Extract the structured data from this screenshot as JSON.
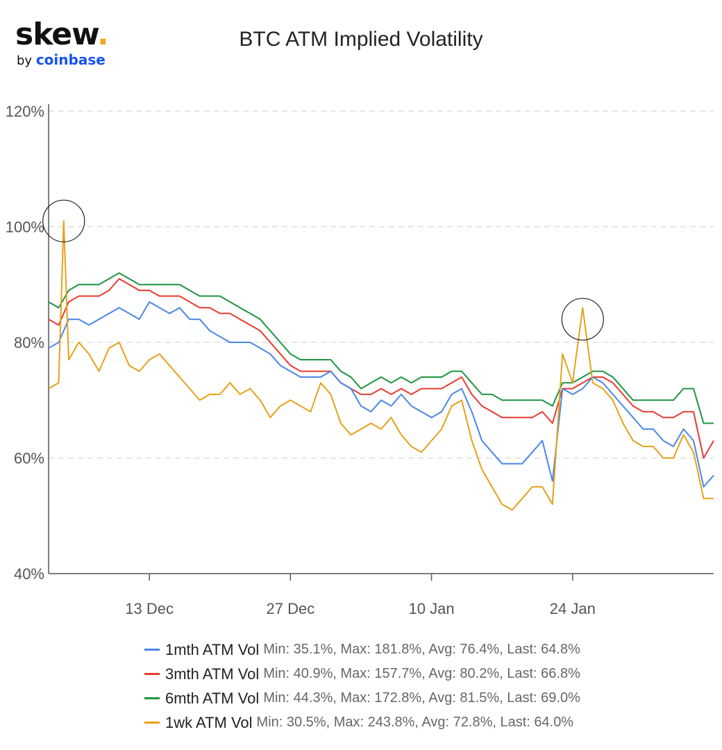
{
  "logo": {
    "main": "skew",
    "dot": ".",
    "by": "by",
    "brand": "coinbase"
  },
  "chart_data": {
    "type": "line",
    "title": "BTC ATM Implied Volatility",
    "y_tick_labels": [
      "40%",
      "60%",
      "80%",
      "100%",
      "120%"
    ],
    "x_tick_labels": [
      "13 Dec",
      "27 Dec",
      "10 Jan",
      "24 Jan"
    ],
    "ylim": [
      40,
      120
    ],
    "xlim": [
      "2021-12-03",
      "2022-02-07"
    ],
    "grid": "horizontal dashed",
    "legend_position": "bottom",
    "series": [
      {
        "name": "1mth ATM Vol",
        "stats": "Min: 35.1%, Max: 181.8%, Avg: 76.4%, Last: 64.8%",
        "color": "#4a86e8",
        "points": [
          [
            "2021-12-03",
            79
          ],
          [
            "2021-12-04",
            80
          ],
          [
            "2021-12-05",
            84
          ],
          [
            "2021-12-06",
            84
          ],
          [
            "2021-12-07",
            83
          ],
          [
            "2021-12-08",
            84
          ],
          [
            "2021-12-09",
            85
          ],
          [
            "2021-12-10",
            86
          ],
          [
            "2021-12-11",
            85
          ],
          [
            "2021-12-12",
            84
          ],
          [
            "2021-12-13",
            87
          ],
          [
            "2021-12-14",
            86
          ],
          [
            "2021-12-15",
            85
          ],
          [
            "2021-12-16",
            86
          ],
          [
            "2021-12-17",
            84
          ],
          [
            "2021-12-18",
            84
          ],
          [
            "2021-12-19",
            82
          ],
          [
            "2021-12-20",
            81
          ],
          [
            "2021-12-21",
            80
          ],
          [
            "2021-12-22",
            80
          ],
          [
            "2021-12-23",
            80
          ],
          [
            "2021-12-24",
            79
          ],
          [
            "2021-12-25",
            78
          ],
          [
            "2021-12-26",
            76
          ],
          [
            "2021-12-27",
            75
          ],
          [
            "2021-12-28",
            74
          ],
          [
            "2021-12-29",
            74
          ],
          [
            "2021-12-30",
            74
          ],
          [
            "2021-12-31",
            75
          ],
          [
            "2022-01-01",
            73
          ],
          [
            "2022-01-02",
            72
          ],
          [
            "2022-01-03",
            69
          ],
          [
            "2022-01-04",
            68
          ],
          [
            "2022-01-05",
            70
          ],
          [
            "2022-01-06",
            69
          ],
          [
            "2022-01-07",
            71
          ],
          [
            "2022-01-08",
            69
          ],
          [
            "2022-01-09",
            68
          ],
          [
            "2022-01-10",
            67
          ],
          [
            "2022-01-11",
            68
          ],
          [
            "2022-01-12",
            71
          ],
          [
            "2022-01-13",
            72
          ],
          [
            "2022-01-14",
            68
          ],
          [
            "2022-01-15",
            63
          ],
          [
            "2022-01-16",
            61
          ],
          [
            "2022-01-17",
            59
          ],
          [
            "2022-01-18",
            59
          ],
          [
            "2022-01-19",
            59
          ],
          [
            "2022-01-20",
            61
          ],
          [
            "2022-01-21",
            63
          ],
          [
            "2022-01-22",
            56
          ],
          [
            "2022-01-23",
            72
          ],
          [
            "2022-01-24",
            71
          ],
          [
            "2022-01-25",
            72
          ],
          [
            "2022-01-26",
            74
          ],
          [
            "2022-01-27",
            73
          ],
          [
            "2022-01-28",
            71
          ],
          [
            "2022-01-29",
            69
          ],
          [
            "2022-01-30",
            67
          ],
          [
            "2022-01-31",
            65
          ],
          [
            "2022-02-01",
            65
          ],
          [
            "2022-02-02",
            63
          ],
          [
            "2022-02-03",
            62
          ],
          [
            "2022-02-04",
            65
          ],
          [
            "2022-02-05",
            63
          ],
          [
            "2022-02-06",
            55
          ],
          [
            "2022-02-07",
            57
          ]
        ]
      },
      {
        "name": "3mth ATM Vol",
        "stats": "Min: 40.9%, Max: 157.7%, Avg: 80.2%, Last: 66.8%",
        "color": "#e83a2f",
        "points": [
          [
            "2021-12-03",
            84
          ],
          [
            "2021-12-04",
            83
          ],
          [
            "2021-12-05",
            87
          ],
          [
            "2021-12-06",
            88
          ],
          [
            "2021-12-07",
            88
          ],
          [
            "2021-12-08",
            88
          ],
          [
            "2021-12-09",
            89
          ],
          [
            "2021-12-10",
            91
          ],
          [
            "2021-12-11",
            90
          ],
          [
            "2021-12-12",
            89
          ],
          [
            "2021-12-13",
            89
          ],
          [
            "2021-12-14",
            88
          ],
          [
            "2021-12-15",
            88
          ],
          [
            "2021-12-16",
            88
          ],
          [
            "2021-12-17",
            87
          ],
          [
            "2021-12-18",
            86
          ],
          [
            "2021-12-19",
            86
          ],
          [
            "2021-12-20",
            85
          ],
          [
            "2021-12-21",
            85
          ],
          [
            "2021-12-22",
            84
          ],
          [
            "2021-12-23",
            83
          ],
          [
            "2021-12-24",
            82
          ],
          [
            "2021-12-25",
            80
          ],
          [
            "2021-12-26",
            78
          ],
          [
            "2021-12-27",
            76
          ],
          [
            "2021-12-28",
            75
          ],
          [
            "2021-12-29",
            75
          ],
          [
            "2021-12-30",
            75
          ],
          [
            "2021-12-31",
            75
          ],
          [
            "2022-01-01",
            73
          ],
          [
            "2022-01-02",
            72
          ],
          [
            "2022-01-03",
            71
          ],
          [
            "2022-01-04",
            71
          ],
          [
            "2022-01-05",
            72
          ],
          [
            "2022-01-06",
            71
          ],
          [
            "2022-01-07",
            72
          ],
          [
            "2022-01-08",
            71
          ],
          [
            "2022-01-09",
            72
          ],
          [
            "2022-01-10",
            72
          ],
          [
            "2022-01-11",
            72
          ],
          [
            "2022-01-12",
            73
          ],
          [
            "2022-01-13",
            74
          ],
          [
            "2022-01-14",
            71
          ],
          [
            "2022-01-15",
            69
          ],
          [
            "2022-01-16",
            68
          ],
          [
            "2022-01-17",
            67
          ],
          [
            "2022-01-18",
            67
          ],
          [
            "2022-01-19",
            67
          ],
          [
            "2022-01-20",
            67
          ],
          [
            "2022-01-21",
            68
          ],
          [
            "2022-01-22",
            66
          ],
          [
            "2022-01-23",
            72
          ],
          [
            "2022-01-24",
            72
          ],
          [
            "2022-01-25",
            73
          ],
          [
            "2022-01-26",
            74
          ],
          [
            "2022-01-27",
            74
          ],
          [
            "2022-01-28",
            73
          ],
          [
            "2022-01-29",
            71
          ],
          [
            "2022-01-30",
            69
          ],
          [
            "2022-01-31",
            68
          ],
          [
            "2022-02-01",
            68
          ],
          [
            "2022-02-02",
            67
          ],
          [
            "2022-02-03",
            67
          ],
          [
            "2022-02-04",
            68
          ],
          [
            "2022-02-05",
            68
          ],
          [
            "2022-02-06",
            60
          ],
          [
            "2022-02-07",
            63
          ]
        ]
      },
      {
        "name": "6mth ATM Vol",
        "stats": "Min: 44.3%, Max: 172.8%, Avg: 81.5%, Last: 69.0%",
        "color": "#1e9440",
        "points": [
          [
            "2021-12-03",
            87
          ],
          [
            "2021-12-04",
            86
          ],
          [
            "2021-12-05",
            89
          ],
          [
            "2021-12-06",
            90
          ],
          [
            "2021-12-07",
            90
          ],
          [
            "2021-12-08",
            90
          ],
          [
            "2021-12-09",
            91
          ],
          [
            "2021-12-10",
            92
          ],
          [
            "2021-12-11",
            91
          ],
          [
            "2021-12-12",
            90
          ],
          [
            "2021-12-13",
            90
          ],
          [
            "2021-12-14",
            90
          ],
          [
            "2021-12-15",
            90
          ],
          [
            "2021-12-16",
            90
          ],
          [
            "2021-12-17",
            89
          ],
          [
            "2021-12-18",
            88
          ],
          [
            "2021-12-19",
            88
          ],
          [
            "2021-12-20",
            88
          ],
          [
            "2021-12-21",
            87
          ],
          [
            "2021-12-22",
            86
          ],
          [
            "2021-12-23",
            85
          ],
          [
            "2021-12-24",
            84
          ],
          [
            "2021-12-25",
            82
          ],
          [
            "2021-12-26",
            80
          ],
          [
            "2021-12-27",
            78
          ],
          [
            "2021-12-28",
            77
          ],
          [
            "2021-12-29",
            77
          ],
          [
            "2021-12-30",
            77
          ],
          [
            "2021-12-31",
            77
          ],
          [
            "2022-01-01",
            75
          ],
          [
            "2022-01-02",
            74
          ],
          [
            "2022-01-03",
            72
          ],
          [
            "2022-01-04",
            73
          ],
          [
            "2022-01-05",
            74
          ],
          [
            "2022-01-06",
            73
          ],
          [
            "2022-01-07",
            74
          ],
          [
            "2022-01-08",
            73
          ],
          [
            "2022-01-09",
            74
          ],
          [
            "2022-01-10",
            74
          ],
          [
            "2022-01-11",
            74
          ],
          [
            "2022-01-12",
            75
          ],
          [
            "2022-01-13",
            75
          ],
          [
            "2022-01-14",
            73
          ],
          [
            "2022-01-15",
            71
          ],
          [
            "2022-01-16",
            71
          ],
          [
            "2022-01-17",
            70
          ],
          [
            "2022-01-18",
            70
          ],
          [
            "2022-01-19",
            70
          ],
          [
            "2022-01-20",
            70
          ],
          [
            "2022-01-21",
            70
          ],
          [
            "2022-01-22",
            69
          ],
          [
            "2022-01-23",
            73
          ],
          [
            "2022-01-24",
            73
          ],
          [
            "2022-01-25",
            74
          ],
          [
            "2022-01-26",
            75
          ],
          [
            "2022-01-27",
            75
          ],
          [
            "2022-01-28",
            74
          ],
          [
            "2022-01-29",
            72
          ],
          [
            "2022-01-30",
            70
          ],
          [
            "2022-01-31",
            70
          ],
          [
            "2022-02-01",
            70
          ],
          [
            "2022-02-02",
            70
          ],
          [
            "2022-02-03",
            70
          ],
          [
            "2022-02-04",
            72
          ],
          [
            "2022-02-05",
            72
          ],
          [
            "2022-02-06",
            66
          ],
          [
            "2022-02-07",
            66
          ]
        ]
      },
      {
        "name": "1wk ATM Vol",
        "stats": "Min: 30.5%, Max: 243.8%, Avg: 72.8%, Last: 64.0%",
        "color": "#e6a117",
        "points": [
          [
            "2021-12-03",
            72
          ],
          [
            "2021-12-04",
            73
          ],
          [
            "2021-12-04T12:00",
            101
          ],
          [
            "2021-12-05",
            77
          ],
          [
            "2021-12-06",
            80
          ],
          [
            "2021-12-07",
            78
          ],
          [
            "2021-12-08",
            75
          ],
          [
            "2021-12-09",
            79
          ],
          [
            "2021-12-10",
            80
          ],
          [
            "2021-12-11",
            76
          ],
          [
            "2021-12-12",
            75
          ],
          [
            "2021-12-13",
            77
          ],
          [
            "2021-12-14",
            78
          ],
          [
            "2021-12-15",
            76
          ],
          [
            "2021-12-16",
            74
          ],
          [
            "2021-12-17",
            72
          ],
          [
            "2021-12-18",
            70
          ],
          [
            "2021-12-19",
            71
          ],
          [
            "2021-12-20",
            71
          ],
          [
            "2021-12-21",
            73
          ],
          [
            "2021-12-22",
            71
          ],
          [
            "2021-12-23",
            72
          ],
          [
            "2021-12-24",
            70
          ],
          [
            "2021-12-25",
            67
          ],
          [
            "2021-12-26",
            69
          ],
          [
            "2021-12-27",
            70
          ],
          [
            "2021-12-28",
            69
          ],
          [
            "2021-12-29",
            68
          ],
          [
            "2021-12-30",
            73
          ],
          [
            "2021-12-31",
            71
          ],
          [
            "2022-01-01",
            66
          ],
          [
            "2022-01-02",
            64
          ],
          [
            "2022-01-03",
            65
          ],
          [
            "2022-01-04",
            66
          ],
          [
            "2022-01-05",
            65
          ],
          [
            "2022-01-06",
            67
          ],
          [
            "2022-01-07",
            64
          ],
          [
            "2022-01-08",
            62
          ],
          [
            "2022-01-09",
            61
          ],
          [
            "2022-01-10",
            63
          ],
          [
            "2022-01-11",
            65
          ],
          [
            "2022-01-12",
            69
          ],
          [
            "2022-01-13",
            70
          ],
          [
            "2022-01-14",
            63
          ],
          [
            "2022-01-15",
            58
          ],
          [
            "2022-01-16",
            55
          ],
          [
            "2022-01-17",
            52
          ],
          [
            "2022-01-18",
            51
          ],
          [
            "2022-01-19",
            53
          ],
          [
            "2022-01-20",
            55
          ],
          [
            "2022-01-21",
            55
          ],
          [
            "2022-01-22",
            52
          ],
          [
            "2022-01-23",
            78
          ],
          [
            "2022-01-24",
            73
          ],
          [
            "2022-01-25",
            86
          ],
          [
            "2022-01-26",
            73
          ],
          [
            "2022-01-27",
            72
          ],
          [
            "2022-01-28",
            70
          ],
          [
            "2022-01-29",
            66
          ],
          [
            "2022-01-30",
            63
          ],
          [
            "2022-01-31",
            62
          ],
          [
            "2022-02-01",
            62
          ],
          [
            "2022-02-02",
            60
          ],
          [
            "2022-02-03",
            60
          ],
          [
            "2022-02-04",
            64
          ],
          [
            "2022-02-05",
            61
          ],
          [
            "2022-02-06",
            53
          ],
          [
            "2022-02-07",
            53
          ]
        ]
      }
    ]
  }
}
